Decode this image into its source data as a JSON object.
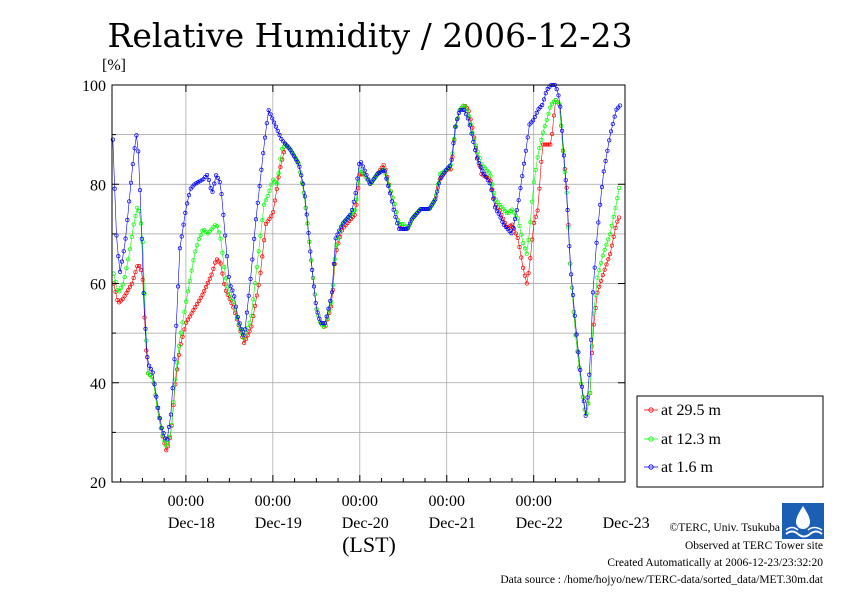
{
  "chart_data": {
    "type": "line",
    "title": "Relative Humidity / 2006-12-23",
    "ylabel": "[%]",
    "xlabel": "(LST)",
    "ylim": [
      20,
      100
    ],
    "xlim": [
      -0.85,
      5.05
    ],
    "x_unit": "days from Dec-18 00:00 LST",
    "yticks": [
      20,
      40,
      60,
      80,
      100
    ],
    "ytick_labels": [
      "20",
      "40",
      "60",
      "80",
      "100"
    ],
    "xticks": [
      0,
      1,
      2,
      3,
      4
    ],
    "xtick_time_label": "00:00",
    "day_labels": [
      {
        "x": 0.5,
        "label": "Dec-18"
      },
      {
        "x": 1.5,
        "label": "Dec-19"
      },
      {
        "x": 2.5,
        "label": "Dec-20"
      },
      {
        "x": 3.5,
        "label": "Dec-21"
      },
      {
        "x": 4.5,
        "label": "Dec-22"
      },
      {
        "x": 5.5,
        "label": "Dec-23"
      }
    ],
    "grid": true,
    "legend_position": "right",
    "series": [
      {
        "name": "at 29.5 m",
        "color": "#ff0000",
        "keypoints": [
          [
            -0.83,
            60
          ],
          [
            -0.78,
            56
          ],
          [
            -0.72,
            57
          ],
          [
            -0.62,
            60
          ],
          [
            -0.55,
            64
          ],
          [
            -0.5,
            62
          ],
          [
            -0.47,
            51
          ],
          [
            -0.44,
            42
          ],
          [
            -0.38,
            41
          ],
          [
            -0.33,
            35
          ],
          [
            -0.28,
            30
          ],
          [
            -0.22,
            26
          ],
          [
            -0.17,
            30
          ],
          [
            -0.12,
            40
          ],
          [
            -0.07,
            47
          ],
          [
            0,
            52
          ],
          [
            0.1,
            55
          ],
          [
            0.2,
            58
          ],
          [
            0.3,
            62
          ],
          [
            0.35,
            65
          ],
          [
            0.4,
            64
          ],
          [
            0.45,
            59
          ],
          [
            0.5,
            57
          ],
          [
            0.55,
            55
          ],
          [
            0.6,
            52
          ],
          [
            0.67,
            48
          ],
          [
            0.75,
            51
          ],
          [
            0.85,
            61
          ],
          [
            0.92,
            72
          ],
          [
            1.0,
            74
          ],
          [
            1.08,
            83
          ],
          [
            1.15,
            88
          ],
          [
            1.2,
            87
          ],
          [
            1.3,
            84
          ],
          [
            1.36,
            78
          ],
          [
            1.4,
            72
          ],
          [
            1.45,
            63
          ],
          [
            1.5,
            55
          ],
          [
            1.55,
            52
          ],
          [
            1.6,
            51
          ],
          [
            1.68,
            56
          ],
          [
            1.72,
            66
          ],
          [
            1.8,
            71
          ],
          [
            1.9,
            73
          ],
          [
            1.95,
            74
          ],
          [
            2.0,
            82
          ],
          [
            2.05,
            82
          ],
          [
            2.12,
            80
          ],
          [
            2.2,
            82
          ],
          [
            2.28,
            84
          ],
          [
            2.35,
            79
          ],
          [
            2.4,
            76
          ],
          [
            2.45,
            72
          ],
          [
            2.5,
            71
          ],
          [
            2.55,
            71
          ],
          [
            2.6,
            73
          ],
          [
            2.7,
            75
          ],
          [
            2.8,
            75
          ],
          [
            2.87,
            77
          ],
          [
            2.92,
            81
          ],
          [
            3.0,
            83
          ],
          [
            3.05,
            83
          ],
          [
            3.1,
            91
          ],
          [
            3.15,
            95
          ],
          [
            3.2,
            96
          ],
          [
            3.25,
            95
          ],
          [
            3.3,
            91
          ],
          [
            3.35,
            86
          ],
          [
            3.4,
            82
          ],
          [
            3.5,
            81
          ],
          [
            3.56,
            76
          ],
          [
            3.6,
            75
          ],
          [
            3.65,
            73
          ],
          [
            3.7,
            71
          ],
          [
            3.75,
            72
          ],
          [
            3.82,
            69
          ],
          [
            3.88,
            63
          ],
          [
            3.92,
            60
          ],
          [
            3.95,
            63
          ],
          [
            4.0,
            72
          ],
          [
            4.05,
            75
          ],
          [
            4.1,
            88
          ],
          [
            4.15,
            88
          ],
          [
            4.2,
            88
          ],
          [
            4.25,
            97
          ],
          [
            4.3,
            96
          ],
          [
            4.33,
            88
          ],
          [
            4.38,
            79
          ],
          [
            4.42,
            64
          ],
          [
            4.48,
            50
          ],
          [
            4.55,
            39
          ],
          [
            4.6,
            33
          ],
          [
            4.65,
            38
          ],
          [
            4.68,
            50
          ],
          [
            4.73,
            58
          ],
          [
            4.8,
            62
          ],
          [
            4.88,
            66
          ],
          [
            4.95,
            72
          ],
          [
            5.0,
            74
          ]
        ]
      },
      {
        "name": "at 12.3 m",
        "color": "#00ff00",
        "keypoints": [
          [
            -0.83,
            62
          ],
          [
            -0.78,
            58
          ],
          [
            -0.72,
            60
          ],
          [
            -0.65,
            66
          ],
          [
            -0.6,
            72
          ],
          [
            -0.55,
            76
          ],
          [
            -0.5,
            70
          ],
          [
            -0.47,
            55
          ],
          [
            -0.44,
            42
          ],
          [
            -0.38,
            41
          ],
          [
            -0.33,
            35
          ],
          [
            -0.28,
            30
          ],
          [
            -0.22,
            27
          ],
          [
            -0.17,
            30
          ],
          [
            -0.12,
            41
          ],
          [
            -0.07,
            49
          ],
          [
            0,
            56
          ],
          [
            0.05,
            61
          ],
          [
            0.1,
            66
          ],
          [
            0.15,
            69
          ],
          [
            0.2,
            71
          ],
          [
            0.25,
            70
          ],
          [
            0.3,
            71
          ],
          [
            0.35,
            72
          ],
          [
            0.4,
            69
          ],
          [
            0.45,
            62
          ],
          [
            0.5,
            58
          ],
          [
            0.55,
            56
          ],
          [
            0.6,
            52
          ],
          [
            0.67,
            49
          ],
          [
            0.75,
            53
          ],
          [
            0.82,
            64
          ],
          [
            0.9,
            76
          ],
          [
            0.95,
            78
          ],
          [
            1.0,
            81
          ],
          [
            1.05,
            80
          ],
          [
            1.1,
            87
          ],
          [
            1.15,
            88
          ],
          [
            1.2,
            87
          ],
          [
            1.3,
            84
          ],
          [
            1.36,
            78
          ],
          [
            1.4,
            72
          ],
          [
            1.45,
            63
          ],
          [
            1.5,
            55
          ],
          [
            1.55,
            52
          ],
          [
            1.6,
            51
          ],
          [
            1.68,
            57
          ],
          [
            1.72,
            67
          ],
          [
            1.8,
            72
          ],
          [
            1.9,
            74
          ],
          [
            1.95,
            75
          ],
          [
            2.0,
            83
          ],
          [
            2.05,
            82
          ],
          [
            2.12,
            80
          ],
          [
            2.2,
            82
          ],
          [
            2.28,
            83
          ],
          [
            2.35,
            79
          ],
          [
            2.4,
            76
          ],
          [
            2.45,
            72
          ],
          [
            2.5,
            72
          ],
          [
            2.55,
            71
          ],
          [
            2.6,
            73
          ],
          [
            2.7,
            75
          ],
          [
            2.8,
            75
          ],
          [
            2.87,
            77
          ],
          [
            2.92,
            82
          ],
          [
            3.0,
            83
          ],
          [
            3.05,
            84
          ],
          [
            3.1,
            91
          ],
          [
            3.15,
            95
          ],
          [
            3.2,
            96
          ],
          [
            3.25,
            94
          ],
          [
            3.3,
            90
          ],
          [
            3.35,
            87
          ],
          [
            3.4,
            84
          ],
          [
            3.5,
            82
          ],
          [
            3.56,
            77
          ],
          [
            3.6,
            76
          ],
          [
            3.65,
            75
          ],
          [
            3.7,
            74
          ],
          [
            3.75,
            75
          ],
          [
            3.82,
            73
          ],
          [
            3.88,
            68
          ],
          [
            3.92,
            66
          ],
          [
            3.95,
            70
          ],
          [
            4.0,
            80
          ],
          [
            4.05,
            86
          ],
          [
            4.1,
            90
          ],
          [
            4.15,
            93
          ],
          [
            4.2,
            96
          ],
          [
            4.25,
            97
          ],
          [
            4.3,
            96
          ],
          [
            4.33,
            88
          ],
          [
            4.38,
            78
          ],
          [
            4.42,
            64
          ],
          [
            4.48,
            50
          ],
          [
            4.55,
            39
          ],
          [
            4.6,
            33
          ],
          [
            4.65,
            38
          ],
          [
            4.68,
            52
          ],
          [
            4.73,
            61
          ],
          [
            4.8,
            66
          ],
          [
            4.88,
            70
          ],
          [
            4.95,
            76
          ],
          [
            5.0,
            81
          ]
        ]
      },
      {
        "name": "at 1.6 m",
        "color": "#0000ff",
        "keypoints": [
          [
            -0.84,
            89
          ],
          [
            -0.8,
            70
          ],
          [
            -0.76,
            62
          ],
          [
            -0.7,
            68
          ],
          [
            -0.65,
            77
          ],
          [
            -0.6,
            86
          ],
          [
            -0.56,
            91
          ],
          [
            -0.52,
            76
          ],
          [
            -0.48,
            55
          ],
          [
            -0.44,
            44
          ],
          [
            -0.38,
            42
          ],
          [
            -0.33,
            36
          ],
          [
            -0.28,
            31
          ],
          [
            -0.22,
            28
          ],
          [
            -0.17,
            34
          ],
          [
            -0.12,
            48
          ],
          [
            -0.07,
            67
          ],
          [
            0,
            75
          ],
          [
            0.05,
            79
          ],
          [
            0.1,
            80
          ],
          [
            0.2,
            81
          ],
          [
            0.25,
            82
          ],
          [
            0.3,
            78
          ],
          [
            0.35,
            82
          ],
          [
            0.4,
            80
          ],
          [
            0.45,
            70
          ],
          [
            0.5,
            60
          ],
          [
            0.55,
            58
          ],
          [
            0.6,
            53
          ],
          [
            0.67,
            49
          ],
          [
            0.75,
            62
          ],
          [
            0.8,
            72
          ],
          [
            0.85,
            80
          ],
          [
            0.9,
            88
          ],
          [
            0.95,
            95
          ],
          [
            1.0,
            93
          ],
          [
            1.05,
            91
          ],
          [
            1.1,
            89
          ],
          [
            1.15,
            88
          ],
          [
            1.2,
            87
          ],
          [
            1.3,
            84
          ],
          [
            1.36,
            79
          ],
          [
            1.4,
            72
          ],
          [
            1.45,
            63
          ],
          [
            1.5,
            55
          ],
          [
            1.55,
            52
          ],
          [
            1.6,
            52
          ],
          [
            1.68,
            58
          ],
          [
            1.72,
            69
          ],
          [
            1.8,
            72
          ],
          [
            1.9,
            74
          ],
          [
            1.95,
            78
          ],
          [
            2.0,
            85
          ],
          [
            2.05,
            83
          ],
          [
            2.12,
            80
          ],
          [
            2.2,
            82
          ],
          [
            2.28,
            83
          ],
          [
            2.35,
            78
          ],
          [
            2.4,
            74
          ],
          [
            2.45,
            71
          ],
          [
            2.5,
            71
          ],
          [
            2.55,
            71
          ],
          [
            2.6,
            73
          ],
          [
            2.7,
            75
          ],
          [
            2.8,
            75
          ],
          [
            2.87,
            77
          ],
          [
            2.92,
            81
          ],
          [
            3.0,
            83
          ],
          [
            3.05,
            84
          ],
          [
            3.1,
            92
          ],
          [
            3.15,
            95
          ],
          [
            3.2,
            95
          ],
          [
            3.25,
            93
          ],
          [
            3.3,
            89
          ],
          [
            3.35,
            85
          ],
          [
            3.4,
            83
          ],
          [
            3.5,
            80
          ],
          [
            3.56,
            75
          ],
          [
            3.6,
            74
          ],
          [
            3.65,
            72
          ],
          [
            3.7,
            71
          ],
          [
            3.75,
            70
          ],
          [
            3.82,
            76
          ],
          [
            3.88,
            83
          ],
          [
            3.92,
            88
          ],
          [
            3.95,
            92
          ],
          [
            4.0,
            93
          ],
          [
            4.05,
            95
          ],
          [
            4.1,
            96
          ],
          [
            4.15,
            99
          ],
          [
            4.2,
            100
          ],
          [
            4.25,
            100
          ],
          [
            4.3,
            97
          ],
          [
            4.33,
            90
          ],
          [
            4.38,
            78
          ],
          [
            4.42,
            64
          ],
          [
            4.48,
            52
          ],
          [
            4.55,
            40
          ],
          [
            4.6,
            33
          ],
          [
            4.65,
            44
          ],
          [
            4.68,
            58
          ],
          [
            4.73,
            70
          ],
          [
            4.8,
            82
          ],
          [
            4.88,
            90
          ],
          [
            4.95,
            95
          ],
          [
            5.0,
            96
          ]
        ]
      }
    ]
  },
  "legend": {
    "items": [
      "at 29.5 m",
      "at 12.3 m",
      "at 1.6 m"
    ]
  },
  "footer": {
    "copyright": "©TERC, Univ. Tsukuba",
    "observed": "Observed at TERC Tower site",
    "created": "Created Automatically at 2006-12-23/23:32:20",
    "source": "Data source : /home/hojyo/new/TERC-data/sorted_data/MET.30m.dat"
  }
}
